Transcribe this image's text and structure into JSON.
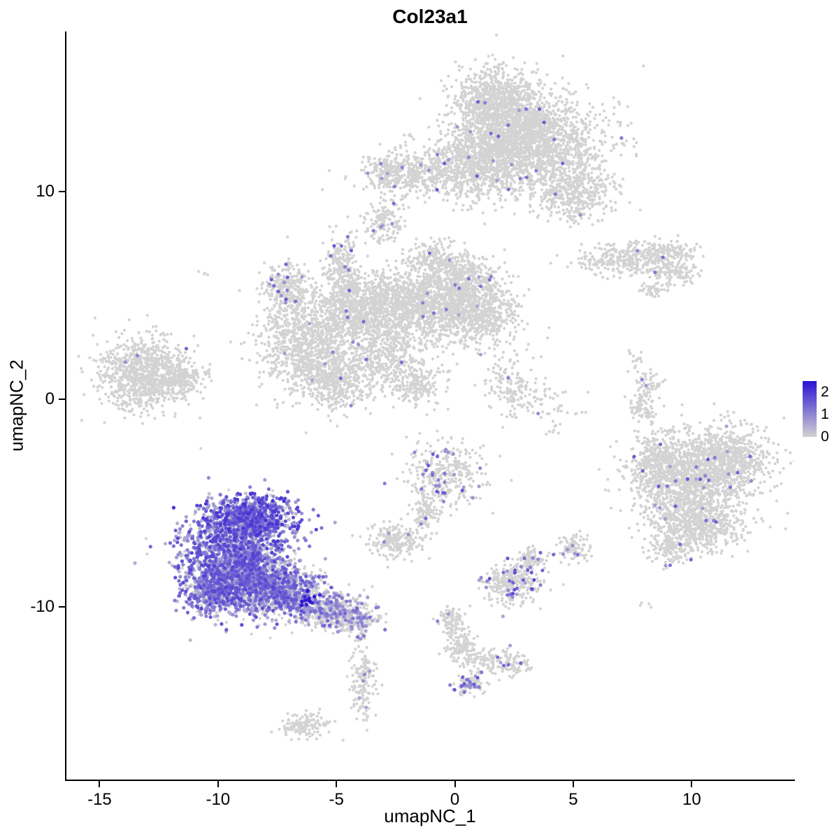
{
  "title": "Col23a1",
  "seed": 42,
  "background": "#ffffff",
  "axes": {
    "x": {
      "label": "umapNC_1",
      "ticks": [
        -15,
        -10,
        -5,
        0,
        5,
        10
      ],
      "range": [
        -16.4,
        14.3
      ]
    },
    "y": {
      "label": "umapNC_2",
      "ticks": [
        -10,
        0,
        10
      ],
      "range": [
        -18.3,
        17.7
      ]
    }
  },
  "chart_data": {
    "type": "scatter",
    "title": "Col23a1",
    "xlabel": "umapNC_1",
    "ylabel": "umapNC_2",
    "xlim": [
      -16.4,
      14.3
    ],
    "ylim": [
      -18.3,
      17.7
    ],
    "grid": false,
    "legend_position": "right",
    "point_radius_gray": 2.1,
    "point_radius_expressing": 2.6,
    "colorbar": {
      "min": 0,
      "max": 2.5,
      "tick_values": [
        2,
        1,
        0
      ],
      "low_color": "#d3d3d3",
      "high_color": "#2b12d3"
    },
    "cluster_fields": [
      "x_center",
      "y_center",
      "x_sd",
      "y_sd",
      "n_cells",
      "expressing_fraction",
      "expr_min",
      "expr_max"
    ],
    "clusters": [
      [
        1.7,
        14.4,
        0.9,
        0.8,
        700,
        0.008,
        0.6,
        1.6
      ],
      [
        3.4,
        12.3,
        1.5,
        1.1,
        1500,
        0.008,
        0.6,
        1.6
      ],
      [
        2.5,
        13.4,
        1.0,
        0.8,
        500,
        0.008,
        0.6,
        1.6
      ],
      [
        1.1,
        11.5,
        1.0,
        1.0,
        700,
        0.008,
        0.6,
        1.6
      ],
      [
        4.9,
        10.0,
        1.0,
        0.6,
        400,
        0.012,
        0.6,
        1.6
      ],
      [
        5.2,
        8.8,
        0.35,
        0.25,
        30,
        0.05,
        0.6,
        1.4
      ],
      [
        -1.2,
        10.9,
        1.2,
        0.55,
        450,
        0.01,
        0.6,
        1.6
      ],
      [
        -2.9,
        10.9,
        0.45,
        0.45,
        130,
        0.02,
        0.6,
        1.4
      ],
      [
        -3.0,
        8.6,
        0.4,
        0.5,
        150,
        0.02,
        0.6,
        1.4
      ],
      [
        -2.0,
        12.6,
        0.15,
        0.12,
        6,
        0,
        0,
        0
      ],
      [
        -13.2,
        1.2,
        0.95,
        0.85,
        900,
        0.004,
        0.6,
        1.4
      ],
      [
        -11.7,
        1.0,
        0.55,
        0.45,
        200,
        0.004,
        0.6,
        1.4
      ],
      [
        -6.3,
        2.6,
        0.95,
        1.1,
        850,
        0.005,
        0.5,
        1.4
      ],
      [
        -5.0,
        0.9,
        0.8,
        0.7,
        500,
        0.005,
        0.5,
        1.4
      ],
      [
        -4.4,
        4.2,
        0.9,
        0.85,
        600,
        0.005,
        0.5,
        1.4
      ],
      [
        -2.6,
        4.8,
        1.1,
        0.8,
        700,
        0.005,
        0.5,
        1.4
      ],
      [
        -0.6,
        4.5,
        1.2,
        0.9,
        900,
        0.005,
        0.5,
        1.4
      ],
      [
        1.1,
        4.1,
        0.8,
        0.8,
        500,
        0.005,
        0.5,
        1.4
      ],
      [
        0.3,
        5.9,
        0.7,
        0.6,
        380,
        0.005,
        0.5,
        1.4
      ],
      [
        -0.9,
        6.9,
        0.5,
        0.4,
        150,
        0.01,
        0.5,
        1.4
      ],
      [
        -4.7,
        6.3,
        0.35,
        0.9,
        230,
        0.05,
        0.6,
        1.6
      ],
      [
        -7.1,
        5.3,
        0.5,
        0.7,
        280,
        0.04,
        0.6,
        1.6
      ],
      [
        -2.9,
        2.3,
        0.8,
        0.8,
        400,
        0.005,
        0.5,
        1.4
      ],
      [
        -1.6,
        0.8,
        0.6,
        0.6,
        200,
        0.005,
        0.5,
        1.4
      ],
      [
        2.3,
        0.9,
        0.55,
        0.75,
        130,
        0.03,
        0.6,
        1.4
      ],
      [
        3.7,
        -0.1,
        0.8,
        0.6,
        70,
        0.02,
        0.6,
        1.4
      ],
      [
        7.0,
        6.7,
        0.9,
        0.35,
        260,
        0.01,
        0.6,
        1.4
      ],
      [
        8.8,
        7.0,
        0.7,
        0.3,
        180,
        0.01,
        0.6,
        1.4
      ],
      [
        9.3,
        6.1,
        0.5,
        0.25,
        110,
        0.02,
        0.6,
        1.4
      ],
      [
        8.3,
        5.3,
        0.3,
        0.2,
        45,
        0.02,
        0.6,
        1.4
      ],
      [
        7.6,
        1.9,
        0.2,
        0.3,
        18,
        0,
        0,
        0
      ],
      [
        8.0,
        -0.3,
        0.3,
        0.4,
        80,
        0.01,
        0.5,
        1.2
      ],
      [
        8.2,
        0.8,
        0.25,
        0.25,
        40,
        0.01,
        0.5,
        1.2
      ],
      [
        9.8,
        -3.7,
        1.1,
        1.1,
        1200,
        0.012,
        0.6,
        1.6
      ],
      [
        11.6,
        -3.0,
        0.9,
        0.8,
        700,
        0.012,
        0.6,
        1.6
      ],
      [
        10.3,
        -6.0,
        1.0,
        0.7,
        600,
        0.012,
        0.6,
        1.6
      ],
      [
        8.3,
        -3.0,
        0.5,
        0.6,
        200,
        0.012,
        0.6,
        1.6
      ],
      [
        9.0,
        -7.2,
        0.45,
        0.4,
        130,
        0.015,
        0.6,
        1.6
      ],
      [
        -8.6,
        -5.7,
        1.0,
        0.55,
        750,
        0.88,
        0.3,
        2.1
      ],
      [
        -9.3,
        -7.5,
        1.1,
        1.0,
        1500,
        0.75,
        0.2,
        1.9
      ],
      [
        -10.2,
        -9.2,
        0.6,
        0.6,
        500,
        0.7,
        0.2,
        1.8
      ],
      [
        -8.3,
        -9.0,
        0.9,
        0.7,
        800,
        0.65,
        0.2,
        1.8
      ],
      [
        -6.9,
        -9.3,
        0.8,
        0.55,
        500,
        0.55,
        0.2,
        1.7
      ],
      [
        -5.3,
        -10.1,
        0.8,
        0.45,
        380,
        0.4,
        0.2,
        1.5
      ],
      [
        -4.3,
        -10.6,
        0.5,
        0.35,
        200,
        0.3,
        0.2,
        1.3
      ],
      [
        -6.2,
        -9.5,
        0.25,
        0.2,
        14,
        1.0,
        2.2,
        2.5
      ],
      [
        -0.4,
        -3.7,
        0.8,
        0.75,
        350,
        0.06,
        0.6,
        1.6
      ],
      [
        -1.3,
        -5.5,
        0.3,
        0.5,
        100,
        0.03,
        0.6,
        1.4
      ],
      [
        -2.5,
        -6.8,
        0.55,
        0.4,
        220,
        0.02,
        0.6,
        1.4
      ],
      [
        2.4,
        -8.8,
        0.6,
        0.5,
        300,
        0.12,
        0.6,
        1.8
      ],
      [
        3.2,
        -7.7,
        0.3,
        0.3,
        80,
        0.1,
        0.6,
        1.6
      ],
      [
        5.0,
        -7.2,
        0.35,
        0.3,
        90,
        0.05,
        0.6,
        1.6
      ],
      [
        -0.2,
        -10.6,
        0.3,
        0.3,
        80,
        0.02,
        0.5,
        1.2
      ],
      [
        0.2,
        -11.8,
        0.35,
        0.45,
        130,
        0.03,
        0.5,
        1.4
      ],
      [
        1.5,
        -12.6,
        0.55,
        0.3,
        110,
        0.03,
        0.5,
        1.4
      ],
      [
        2.6,
        -12.8,
        0.3,
        0.25,
        60,
        0.08,
        0.6,
        1.5
      ],
      [
        0.6,
        -13.7,
        0.3,
        0.25,
        90,
        0.18,
        0.6,
        1.8
      ],
      [
        -3.9,
        -13.6,
        0.25,
        0.85,
        160,
        0.02,
        0.5,
        1.2
      ],
      [
        -3.9,
        -11.4,
        0.15,
        0.15,
        12,
        0.25,
        0.8,
        1.4
      ],
      [
        -6.3,
        -15.7,
        0.5,
        0.3,
        130,
        0.01,
        0.5,
        1.2
      ],
      [
        -10.6,
        6.1,
        0.1,
        0.1,
        4,
        0,
        0,
        0
      ],
      [
        4.2,
        -1.5,
        0.15,
        0.1,
        5,
        0,
        0,
        0
      ],
      [
        8.0,
        -9.9,
        0.12,
        0.1,
        4,
        0,
        0,
        0
      ]
    ]
  }
}
